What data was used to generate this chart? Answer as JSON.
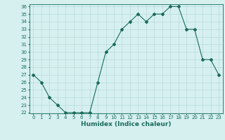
{
  "x": [
    0,
    1,
    2,
    3,
    4,
    5,
    6,
    7,
    8,
    9,
    10,
    11,
    12,
    13,
    14,
    15,
    16,
    17,
    18,
    19,
    20,
    21,
    22,
    23
  ],
  "y": [
    27,
    26,
    24,
    23,
    22,
    22,
    22,
    22,
    26,
    30,
    31,
    33,
    34,
    35,
    34,
    35,
    35,
    36,
    36,
    33,
    33,
    29,
    29,
    27
  ],
  "line_color": "#1a6b5a",
  "marker": "D",
  "marker_size": 2,
  "bg_color": "#d6f0f0",
  "grid_color": "#b8d8d8",
  "title": "",
  "xlabel": "Humidex (Indice chaleur)",
  "ylabel": "",
  "ylim": [
    22,
    36
  ],
  "xlim": [
    -0.5,
    23.5
  ],
  "yticks": [
    22,
    23,
    24,
    25,
    26,
    27,
    28,
    29,
    30,
    31,
    32,
    33,
    34,
    35,
    36
  ],
  "xticks": [
    0,
    1,
    2,
    3,
    4,
    5,
    6,
    7,
    8,
    9,
    10,
    11,
    12,
    13,
    14,
    15,
    16,
    17,
    18,
    19,
    20,
    21,
    22,
    23
  ],
  "tick_color": "#1a6b5a",
  "tick_fontsize": 5,
  "xlabel_fontsize": 6.5,
  "label_color": "#1a6b5a"
}
